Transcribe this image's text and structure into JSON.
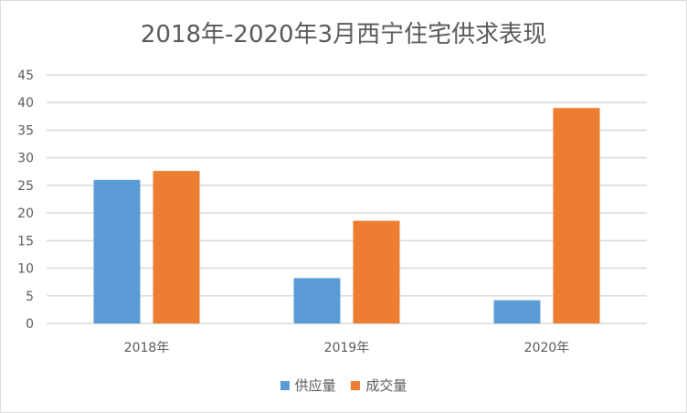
{
  "chart_data": {
    "type": "bar",
    "title": "2018年-2020年3月西宁住宅供求表现",
    "categories": [
      "2018年",
      "2019年",
      "2020年"
    ],
    "series": [
      {
        "name": "供应量",
        "values": [
          26.0,
          8.2,
          4.2
        ],
        "color": "#5b9bd5"
      },
      {
        "name": "成交量",
        "values": [
          27.6,
          18.6,
          39.0
        ],
        "color": "#ed7d31"
      }
    ],
    "ylim": [
      0,
      45
    ],
    "yticks": [
      0,
      5,
      10,
      15,
      20,
      25,
      30,
      35,
      40,
      45
    ],
    "grid": true,
    "legend": "bottom"
  }
}
